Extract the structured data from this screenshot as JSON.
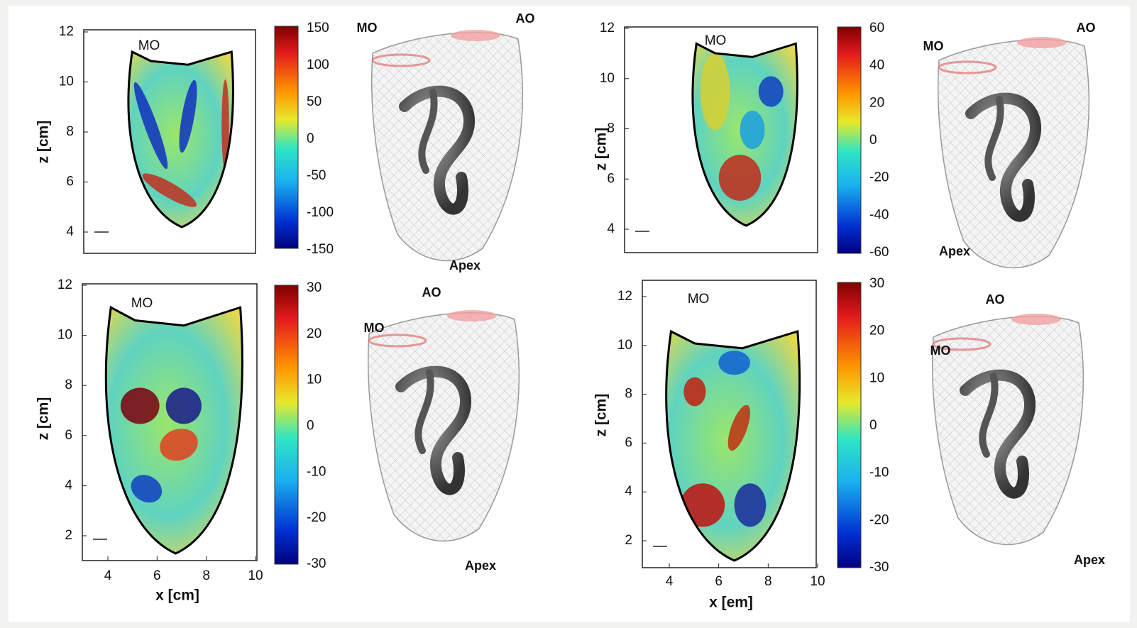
{
  "panels": [
    {
      "y_label": "z [cm]",
      "y_ticks": [
        4,
        6,
        8,
        10,
        12
      ],
      "colorbar_ticks": [
        150,
        100,
        50,
        0,
        -50,
        -100,
        -150
      ],
      "map_label": "MO",
      "render_labels": [
        "MO",
        "AO",
        "Apex"
      ]
    },
    {
      "y_label": "z [cm]",
      "y_ticks": [
        4,
        6,
        8,
        10,
        12
      ],
      "colorbar_ticks": [
        60,
        40,
        20,
        0,
        -20,
        -40,
        -60
      ],
      "map_label": "MO",
      "render_labels": [
        "MO",
        "AO",
        "Apex"
      ]
    },
    {
      "y_label": "z [cm]",
      "y_ticks": [
        2,
        4,
        6,
        8,
        10,
        12
      ],
      "x_label": "x [cm]",
      "x_ticks": [
        4,
        6,
        8,
        10
      ],
      "colorbar_ticks": [
        30,
        20,
        10,
        0,
        -10,
        -20,
        -30
      ],
      "map_label": "MO",
      "render_labels": [
        "AO",
        "MO",
        "Apex"
      ]
    },
    {
      "y_label": "z [cm]",
      "y_ticks": [
        2,
        4,
        6,
        8,
        10,
        12
      ],
      "x_label": "x [em]",
      "x_ticks": [
        4,
        6,
        8,
        10
      ],
      "colorbar_ticks": [
        30,
        20,
        10,
        0,
        -10,
        -20,
        -30
      ],
      "map_label": "MO",
      "render_labels": [
        "AO",
        "MO",
        "Apex"
      ]
    }
  ]
}
